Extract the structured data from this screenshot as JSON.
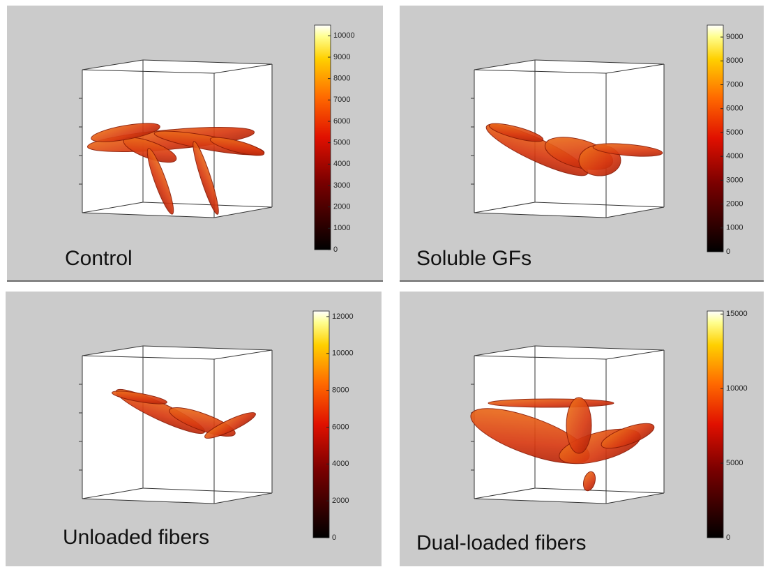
{
  "panels": [
    {
      "label": "Control",
      "colorbar": {
        "range": [
          0,
          10500
        ],
        "ticks": [
          0,
          1000,
          2000,
          3000,
          4000,
          5000,
          6000,
          7000,
          8000,
          9000,
          10000
        ]
      }
    },
    {
      "label": "Soluble GFs",
      "colorbar": {
        "range": [
          0,
          9500
        ],
        "ticks": [
          0,
          1000,
          2000,
          3000,
          4000,
          5000,
          6000,
          7000,
          8000,
          9000
        ]
      }
    },
    {
      "label": "Unloaded fibers",
      "colorbar": {
        "range": [
          0,
          12300
        ],
        "ticks": [
          0,
          2000,
          4000,
          6000,
          8000,
          10000,
          12000
        ]
      }
    },
    {
      "label": "Dual-loaded fibers",
      "colorbar": {
        "range": [
          0,
          15200
        ],
        "ticks": [
          0,
          5000,
          10000,
          15000
        ]
      }
    }
  ]
}
